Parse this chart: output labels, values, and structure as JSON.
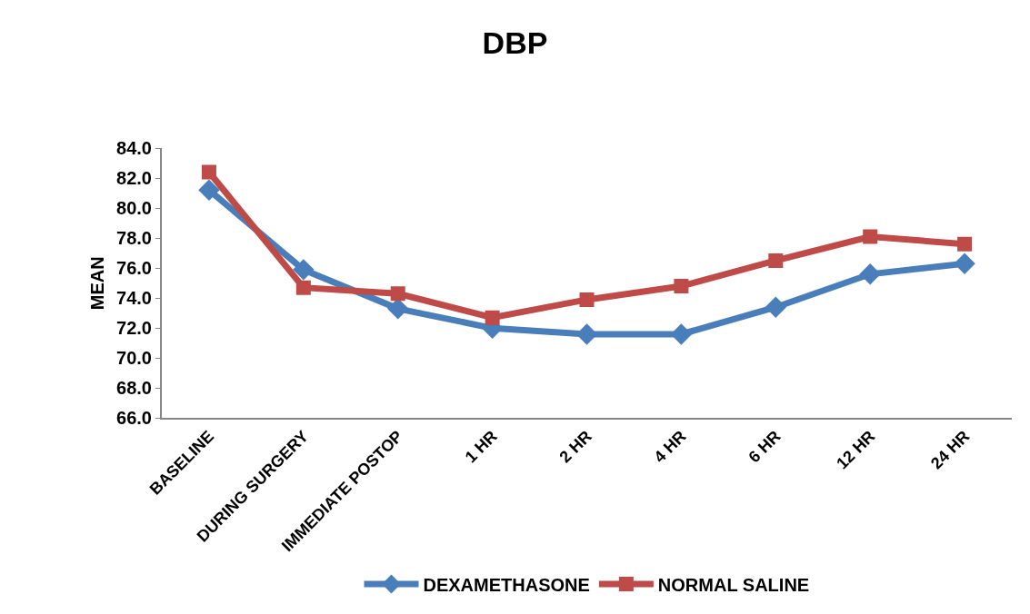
{
  "chart_data": {
    "type": "line",
    "title": "DBP",
    "ylabel": "MEAN",
    "categories": [
      "BASELINE",
      "DURING SURGERY",
      "IMMEDIATE POSTOP",
      "1 HR",
      "2 HR",
      "4 HR",
      "6 HR",
      "12 HR",
      "24 HR"
    ],
    "series": [
      {
        "name": "DEXAMETHASONE",
        "color": "#4a7ebb",
        "marker": "diamond",
        "values": [
          81.2,
          75.9,
          73.3,
          72.0,
          71.6,
          71.6,
          73.4,
          75.6,
          76.3
        ]
      },
      {
        "name": "NORMAL SALINE",
        "color": "#be4b48",
        "marker": "square",
        "values": [
          82.4,
          74.7,
          74.3,
          72.7,
          73.9,
          74.8,
          76.5,
          78.1,
          77.6
        ]
      }
    ],
    "ylim": [
      66,
      84
    ],
    "yticks": [
      {
        "value": 66,
        "label": "66.0"
      },
      {
        "value": 68,
        "label": "68.0"
      },
      {
        "value": 70,
        "label": "70.0"
      },
      {
        "value": 72,
        "label": "72.0"
      },
      {
        "value": 74,
        "label": "74.0"
      },
      {
        "value": 76,
        "label": "76.0"
      },
      {
        "value": 78,
        "label": "78.0"
      },
      {
        "value": 80,
        "label": "80.0"
      },
      {
        "value": 82,
        "label": "82.0"
      },
      {
        "value": 84,
        "label": "84.0"
      }
    ],
    "legend": "bottom",
    "line_style": "solid"
  }
}
